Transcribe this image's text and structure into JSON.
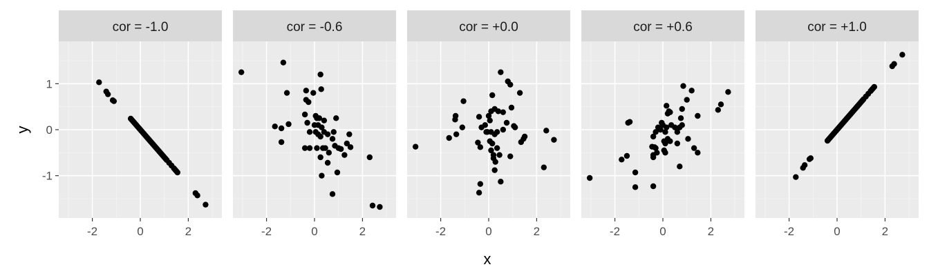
{
  "chart_data": {
    "type": "scatter",
    "layout": "faceted (1 row x 5 panels), shared axes",
    "xlabel": "x",
    "ylabel": "y",
    "xlim": [
      -3.4,
      3.4
    ],
    "ylim": [
      -1.92,
      1.92
    ],
    "x_ticks": [
      -2,
      0,
      2
    ],
    "x_tick_labels": [
      "-2",
      "0",
      "2"
    ],
    "y_ticks": [
      -1,
      0,
      1
    ],
    "y_tick_labels": [
      "-1",
      "0",
      "1"
    ],
    "grid": true,
    "legend": "none",
    "point_color": "#000000",
    "panel_background": "#ebebeb",
    "strip_background": "#d9d9d9",
    "panels": [
      {
        "label": "cor = -1.0",
        "points": [
          [
            -1.72,
            1.03
          ],
          [
            -1.42,
            0.83
          ],
          [
            -1.35,
            0.77
          ],
          [
            -1.15,
            0.64
          ],
          [
            -1.1,
            0.62
          ],
          [
            -0.4,
            0.24
          ],
          [
            -0.35,
            0.21
          ],
          [
            -0.3,
            0.18
          ],
          [
            -0.25,
            0.15
          ],
          [
            -0.2,
            0.12
          ],
          [
            -0.15,
            0.09
          ],
          [
            -0.1,
            0.06
          ],
          [
            -0.05,
            0.03
          ],
          [
            0.0,
            0.0
          ],
          [
            0.05,
            -0.03
          ],
          [
            0.1,
            -0.06
          ],
          [
            0.15,
            -0.09
          ],
          [
            0.2,
            -0.12
          ],
          [
            0.25,
            -0.15
          ],
          [
            0.3,
            -0.18
          ],
          [
            0.35,
            -0.21
          ],
          [
            0.4,
            -0.24
          ],
          [
            0.45,
            -0.27
          ],
          [
            0.5,
            -0.3
          ],
          [
            0.55,
            -0.33
          ],
          [
            0.6,
            -0.36
          ],
          [
            0.65,
            -0.39
          ],
          [
            0.7,
            -0.42
          ],
          [
            0.75,
            -0.45
          ],
          [
            0.8,
            -0.48
          ],
          [
            0.85,
            -0.51
          ],
          [
            0.9,
            -0.54
          ],
          [
            0.95,
            -0.57
          ],
          [
            1.0,
            -0.6
          ],
          [
            1.05,
            -0.63
          ],
          [
            1.1,
            -0.66
          ],
          [
            1.2,
            -0.72
          ],
          [
            1.3,
            -0.78
          ],
          [
            1.4,
            -0.84
          ],
          [
            1.45,
            -0.87
          ],
          [
            1.5,
            -0.9
          ],
          [
            1.55,
            -0.93
          ],
          [
            2.3,
            -1.38
          ],
          [
            2.38,
            -1.43
          ],
          [
            2.72,
            -1.63
          ]
        ]
      },
      {
        "label": "cor = -0.6",
        "points": [
          [
            -3.05,
            1.25
          ],
          [
            -1.3,
            1.46
          ],
          [
            -1.15,
            0.8
          ],
          [
            -1.65,
            0.07
          ],
          [
            -1.38,
            0.03
          ],
          [
            -1.08,
            0.12
          ],
          [
            -1.38,
            -0.27
          ],
          [
            -0.35,
            0.85
          ],
          [
            -0.35,
            0.65
          ],
          [
            -0.25,
            0.6
          ],
          [
            -0.05,
            0.8
          ],
          [
            0.28,
            0.88
          ],
          [
            0.25,
            1.2
          ],
          [
            -0.4,
            0.33
          ],
          [
            -0.3,
            0.15
          ],
          [
            -0.2,
            -0.05
          ],
          [
            0.05,
            0.3
          ],
          [
            0.1,
            0.25
          ],
          [
            0.2,
            0.25
          ],
          [
            0.0,
            0.1
          ],
          [
            0.15,
            0.1
          ],
          [
            0.3,
            0.05
          ],
          [
            0.4,
            0.2
          ],
          [
            0.05,
            -0.05
          ],
          [
            0.15,
            -0.1
          ],
          [
            0.25,
            -0.15
          ],
          [
            0.4,
            -0.05
          ],
          [
            0.55,
            -0.1
          ],
          [
            0.75,
            -0.2
          ],
          [
            0.8,
            -0.05
          ],
          [
            0.9,
            0.25
          ],
          [
            0.35,
            -0.4
          ],
          [
            0.45,
            -0.4
          ],
          [
            0.6,
            -0.5
          ],
          [
            0.85,
            -0.35
          ],
          [
            1.0,
            -0.4
          ],
          [
            1.1,
            -0.42
          ],
          [
            1.25,
            -0.55
          ],
          [
            1.35,
            -0.3
          ],
          [
            1.5,
            -0.38
          ],
          [
            1.45,
            -0.1
          ],
          [
            -0.4,
            -0.4
          ],
          [
            -0.2,
            -0.4
          ],
          [
            0.1,
            -0.4
          ],
          [
            0.25,
            -0.6
          ],
          [
            0.55,
            -0.72
          ],
          [
            0.3,
            -1.0
          ],
          [
            0.95,
            -0.93
          ],
          [
            0.75,
            -1.4
          ],
          [
            2.3,
            -0.6
          ],
          [
            2.42,
            -1.65
          ],
          [
            2.72,
            -1.68
          ]
        ]
      },
      {
        "label": "cor = +0.0",
        "points": [
          [
            -3.05,
            -0.37
          ],
          [
            -1.65,
            -0.18
          ],
          [
            -1.35,
            -0.1
          ],
          [
            -1.38,
            0.3
          ],
          [
            -1.4,
            0.22
          ],
          [
            -1.05,
            0.62
          ],
          [
            -1.1,
            0.05
          ],
          [
            -0.4,
            0.28
          ],
          [
            -0.3,
            0.05
          ],
          [
            -0.45,
            -0.28
          ],
          [
            -0.35,
            -0.38
          ],
          [
            -0.15,
            0.1
          ],
          [
            -0.1,
            -0.05
          ],
          [
            0.0,
            0.3
          ],
          [
            0.05,
            0.2
          ],
          [
            0.1,
            0.4
          ],
          [
            0.15,
            0.75
          ],
          [
            0.25,
            0.45
          ],
          [
            0.4,
            0.4
          ],
          [
            0.5,
            1.25
          ],
          [
            0.6,
            0.38
          ],
          [
            0.8,
            1.05
          ],
          [
            0.9,
            0.98
          ],
          [
            0.95,
            0.48
          ],
          [
            0.75,
            0.15
          ],
          [
            0.6,
            0.0
          ],
          [
            0.35,
            -0.05
          ],
          [
            0.25,
            -0.1
          ],
          [
            0.1,
            -0.05
          ],
          [
            -0.05,
            -0.05
          ],
          [
            0.05,
            -0.25
          ],
          [
            0.15,
            -0.3
          ],
          [
            0.2,
            -0.55
          ],
          [
            0.35,
            -0.4
          ],
          [
            0.1,
            -0.45
          ],
          [
            0.2,
            -0.62
          ],
          [
            0.28,
            -0.7
          ],
          [
            0.45,
            -0.55
          ],
          [
            0.25,
            -0.88
          ],
          [
            0.5,
            -1.13
          ],
          [
            -0.35,
            -1.18
          ],
          [
            -0.4,
            -1.37
          ],
          [
            0.9,
            -0.58
          ],
          [
            1.05,
            0.08
          ],
          [
            1.1,
            0.05
          ],
          [
            1.3,
            0.8
          ],
          [
            1.35,
            -0.27
          ],
          [
            1.45,
            -0.2
          ],
          [
            1.5,
            -0.15
          ],
          [
            2.3,
            -0.82
          ],
          [
            2.4,
            -0.02
          ],
          [
            2.72,
            -0.22
          ]
        ]
      },
      {
        "label": "cor = +0.6",
        "points": [
          [
            -3.05,
            -1.05
          ],
          [
            -1.72,
            -0.65
          ],
          [
            -1.5,
            -0.57
          ],
          [
            -1.45,
            0.15
          ],
          [
            -1.38,
            0.17
          ],
          [
            -1.15,
            -0.93
          ],
          [
            -1.15,
            -1.25
          ],
          [
            -0.4,
            -1.23
          ],
          [
            -0.4,
            -0.6
          ],
          [
            -0.4,
            -0.55
          ],
          [
            -0.45,
            -0.37
          ],
          [
            -0.35,
            -0.38
          ],
          [
            -0.3,
            -0.4
          ],
          [
            -0.25,
            -0.5
          ],
          [
            -0.4,
            -0.15
          ],
          [
            -0.3,
            -0.05
          ],
          [
            -0.2,
            0.05
          ],
          [
            -0.1,
            0.0
          ],
          [
            -0.05,
            0.15
          ],
          [
            0.0,
            0.1
          ],
          [
            0.1,
            -0.05
          ],
          [
            0.15,
            0.05
          ],
          [
            0.05,
            -0.25
          ],
          [
            0.1,
            -0.3
          ],
          [
            0.2,
            -0.2
          ],
          [
            0.3,
            -0.25
          ],
          [
            0.35,
            0.1
          ],
          [
            0.25,
            0.4
          ],
          [
            0.2,
            0.35
          ],
          [
            0.3,
            0.38
          ],
          [
            0.15,
            0.52
          ],
          [
            0.05,
            -0.45
          ],
          [
            0.1,
            -0.5
          ],
          [
            0.5,
            0.05
          ],
          [
            0.6,
            -0.05
          ],
          [
            0.7,
            0.05
          ],
          [
            0.8,
            0.1
          ],
          [
            0.8,
            0.45
          ],
          [
            0.75,
            0.25
          ],
          [
            0.6,
            -0.3
          ],
          [
            0.7,
            -0.8
          ],
          [
            0.85,
            0.95
          ],
          [
            1.0,
            0.65
          ],
          [
            1.05,
            -0.2
          ],
          [
            1.2,
            0.85
          ],
          [
            1.3,
            -0.4
          ],
          [
            1.45,
            -0.5
          ],
          [
            1.45,
            0.3
          ],
          [
            2.3,
            0.43
          ],
          [
            2.42,
            0.55
          ],
          [
            2.72,
            0.82
          ]
        ]
      },
      {
        "label": "cor = +1.0",
        "points": [
          [
            -1.72,
            -1.03
          ],
          [
            -1.42,
            -0.83
          ],
          [
            -1.35,
            -0.77
          ],
          [
            -1.15,
            -0.64
          ],
          [
            -1.1,
            -0.62
          ],
          [
            -0.4,
            -0.24
          ],
          [
            -0.35,
            -0.21
          ],
          [
            -0.3,
            -0.18
          ],
          [
            -0.25,
            -0.15
          ],
          [
            -0.2,
            -0.12
          ],
          [
            -0.15,
            -0.09
          ],
          [
            -0.1,
            -0.06
          ],
          [
            -0.05,
            -0.03
          ],
          [
            0.0,
            0.0
          ],
          [
            0.05,
            0.03
          ],
          [
            0.1,
            0.06
          ],
          [
            0.15,
            0.09
          ],
          [
            0.2,
            0.12
          ],
          [
            0.25,
            0.15
          ],
          [
            0.3,
            0.18
          ],
          [
            0.35,
            0.21
          ],
          [
            0.4,
            0.24
          ],
          [
            0.45,
            0.27
          ],
          [
            0.5,
            0.3
          ],
          [
            0.55,
            0.33
          ],
          [
            0.6,
            0.36
          ],
          [
            0.65,
            0.39
          ],
          [
            0.7,
            0.42
          ],
          [
            0.75,
            0.45
          ],
          [
            0.8,
            0.48
          ],
          [
            0.85,
            0.51
          ],
          [
            0.9,
            0.54
          ],
          [
            0.95,
            0.57
          ],
          [
            1.0,
            0.6
          ],
          [
            1.05,
            0.63
          ],
          [
            1.1,
            0.66
          ],
          [
            1.2,
            0.72
          ],
          [
            1.3,
            0.78
          ],
          [
            1.4,
            0.84
          ],
          [
            1.45,
            0.87
          ],
          [
            1.5,
            0.9
          ],
          [
            1.55,
            0.93
          ],
          [
            2.3,
            1.38
          ],
          [
            2.38,
            1.43
          ],
          [
            2.72,
            1.63
          ]
        ]
      }
    ]
  }
}
